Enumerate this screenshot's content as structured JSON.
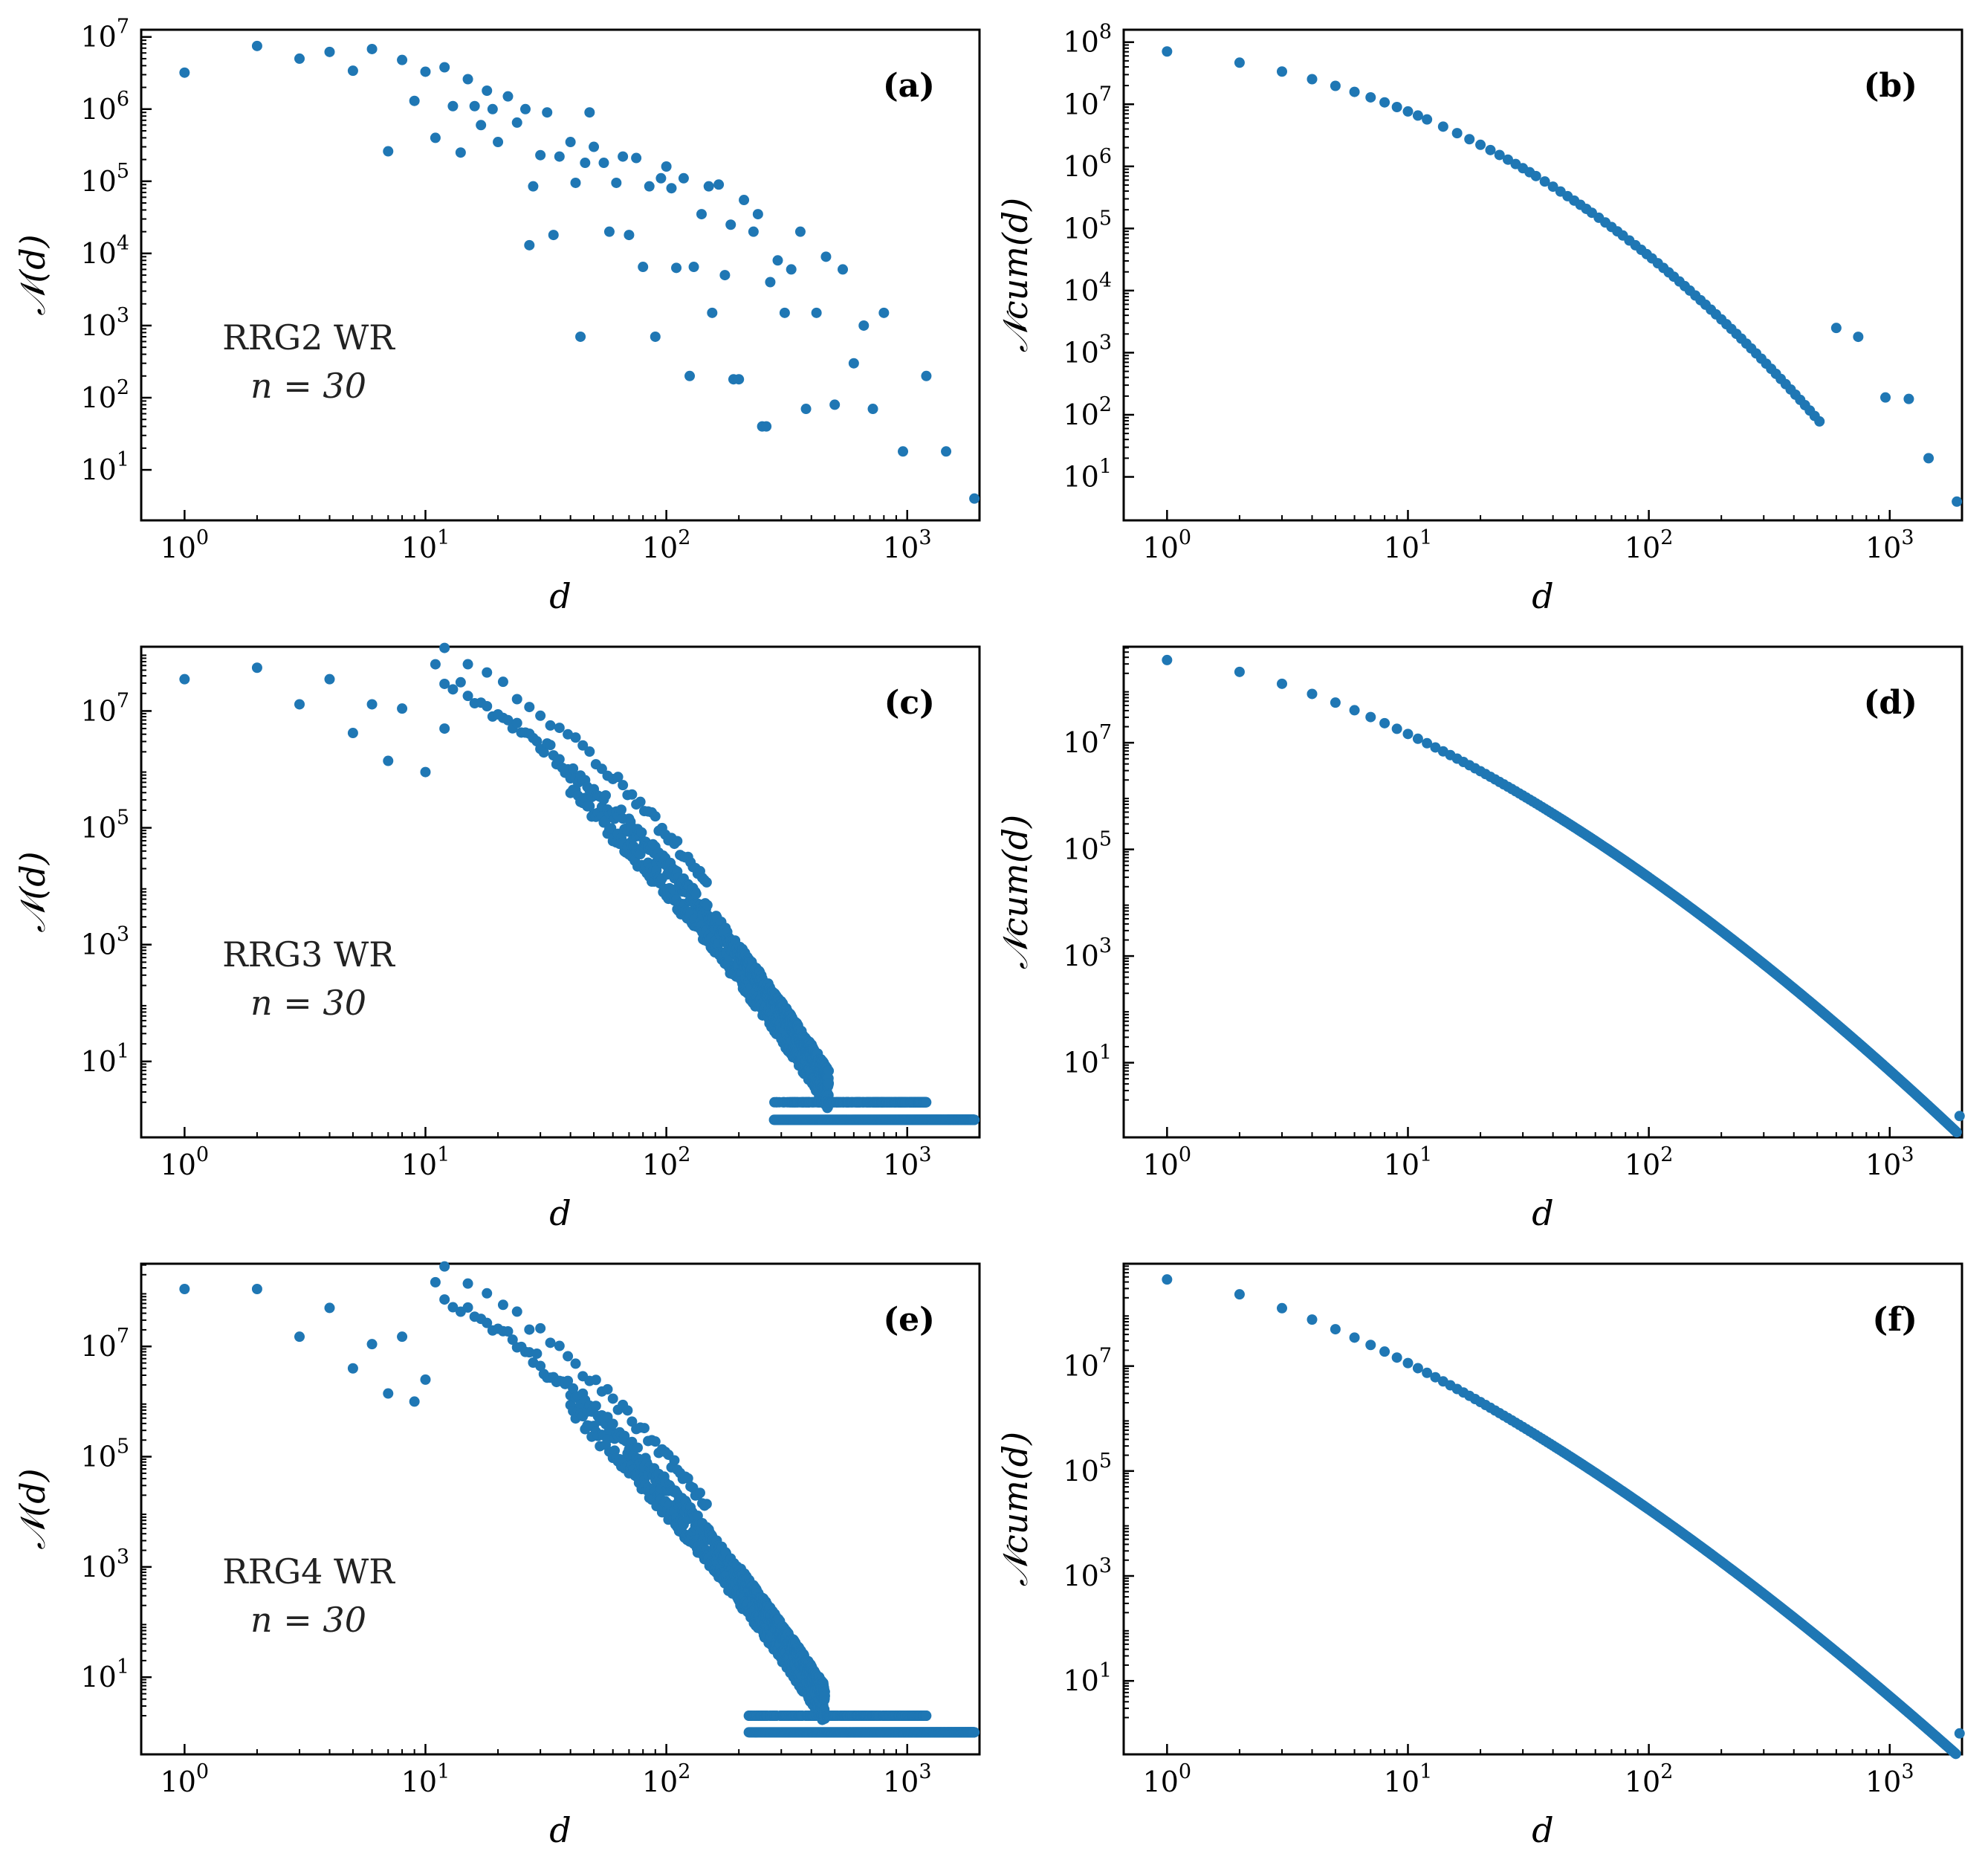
{
  "figure": {
    "point_color": "#1f77b4",
    "x_tick_labels": [
      {
        "base": "10",
        "exp": "0"
      },
      {
        "base": "10",
        "exp": "1"
      },
      {
        "base": "10",
        "exp": "2"
      },
      {
        "base": "10",
        "exp": "3"
      }
    ]
  },
  "chart_data": [
    {
      "id": "a",
      "panel_label": "(a)",
      "type": "scatter",
      "xlabel": "d",
      "ylabel": "𝒩(d)",
      "xscale": "log",
      "yscale": "log",
      "xlim_log10": [
        -0.18,
        3.3
      ],
      "ylim_log10": [
        0.3,
        7.1
      ],
      "y_tick_labels": [
        {
          "base": "10",
          "exp": "1",
          "log": 1
        },
        {
          "base": "10",
          "exp": "2",
          "log": 2
        },
        {
          "base": "10",
          "exp": "3",
          "log": 3
        },
        {
          "base": "10",
          "exp": "4",
          "log": 4
        },
        {
          "base": "10",
          "exp": "5",
          "log": 5
        },
        {
          "base": "10",
          "exp": "6",
          "log": 6
        },
        {
          "base": "10",
          "exp": "7",
          "log": 7
        }
      ],
      "annotation": [
        "RRG2 WR",
        "n = 30"
      ],
      "model": "freq",
      "points": [
        [
          1,
          3200000.0
        ],
        [
          2,
          7500000.0
        ],
        [
          3,
          5000000.0
        ],
        [
          4,
          6200000.0
        ],
        [
          5,
          3400000.0
        ],
        [
          6,
          6800000.0
        ],
        [
          7,
          260000.0
        ],
        [
          8,
          4800000.0
        ],
        [
          9,
          1300000.0
        ],
        [
          10,
          3300000.0
        ],
        [
          11,
          400000.0
        ],
        [
          12,
          3800000.0
        ],
        [
          13,
          1100000.0
        ],
        [
          14,
          250000.0
        ],
        [
          15,
          2600000.0
        ],
        [
          16,
          1100000.0
        ],
        [
          17,
          600000.0
        ],
        [
          18,
          1800000.0
        ],
        [
          19,
          1000000.0
        ],
        [
          20,
          350000.0
        ],
        [
          22,
          1500000.0
        ],
        [
          24,
          650000.0
        ],
        [
          26,
          1000000.0
        ],
        [
          27,
          13000.0
        ],
        [
          28,
          85000.0
        ],
        [
          30,
          230000.0
        ],
        [
          32,
          900000.0
        ],
        [
          34,
          18000.0
        ],
        [
          36,
          220000.0
        ],
        [
          40,
          350000.0
        ],
        [
          42,
          95000.0
        ],
        [
          44,
          700.0
        ],
        [
          46,
          180000.0
        ],
        [
          48,
          900000.0
        ],
        [
          50,
          300000.0
        ],
        [
          55,
          180000.0
        ],
        [
          58,
          20000.0
        ],
        [
          62,
          95000.0
        ],
        [
          66,
          220000.0
        ],
        [
          70,
          18000.0
        ],
        [
          75,
          210000.0
        ],
        [
          80,
          6500.0
        ],
        [
          85,
          85000.0
        ],
        [
          90,
          700.0
        ],
        [
          95,
          110000.0
        ],
        [
          100,
          160000.0
        ],
        [
          105,
          80000.0
        ],
        [
          110,
          6300.0
        ],
        [
          118,
          110000.0
        ],
        [
          125,
          200.0
        ],
        [
          130,
          6500.0
        ],
        [
          140,
          35000.0
        ],
        [
          150,
          85000.0
        ],
        [
          155,
          1500.0
        ],
        [
          165,
          90000.0
        ],
        [
          175,
          5000.0
        ],
        [
          185,
          25000.0
        ],
        [
          190,
          180.0
        ],
        [
          200,
          180.0
        ],
        [
          210,
          55000.0
        ],
        [
          230,
          20000.0
        ],
        [
          240,
          35000.0
        ],
        [
          250,
          40
        ],
        [
          260,
          40
        ],
        [
          270,
          4000.0
        ],
        [
          290,
          8000.0
        ],
        [
          310,
          1500.0
        ],
        [
          330,
          6000.0
        ],
        [
          360,
          20000.0
        ],
        [
          380,
          70
        ],
        [
          420,
          1500.0
        ],
        [
          460,
          9000.0
        ],
        [
          500,
          80
        ],
        [
          540,
          6000.0
        ],
        [
          600,
          300
        ],
        [
          660,
          1000.0
        ],
        [
          720,
          70
        ],
        [
          800,
          1500.0
        ],
        [
          960,
          18
        ],
        [
          1200,
          200
        ],
        [
          1450,
          18
        ],
        [
          1900,
          4
        ]
      ]
    },
    {
      "id": "b",
      "panel_label": "(b)",
      "type": "scatter",
      "xlabel": "d",
      "ylabel": "𝒩cum(d)",
      "xscale": "log",
      "yscale": "log",
      "xlim_log10": [
        -0.18,
        3.3
      ],
      "ylim_log10": [
        0.3,
        8.2
      ],
      "y_tick_labels": [
        {
          "base": "10",
          "exp": "1",
          "log": 1
        },
        {
          "base": "10",
          "exp": "2",
          "log": 2
        },
        {
          "base": "10",
          "exp": "3",
          "log": 3
        },
        {
          "base": "10",
          "exp": "4",
          "log": 4
        },
        {
          "base": "10",
          "exp": "5",
          "log": 5
        },
        {
          "base": "10",
          "exp": "6",
          "log": 6
        },
        {
          "base": "10",
          "exp": "7",
          "log": 7
        },
        {
          "base": "10",
          "exp": "8",
          "log": 8
        }
      ],
      "model": "cum",
      "cum_params": {
        "top": 7.85,
        "range": 7.25,
        "a": 2.1,
        "b": 3.3,
        "p": 2.3,
        "q": 0.5
      },
      "tail_points": [
        [
          600,
          2500.0
        ],
        [
          740,
          1800.0
        ],
        [
          960,
          190.0
        ],
        [
          1200,
          180.0
        ],
        [
          1450,
          20
        ],
        [
          1900,
          4
        ]
      ],
      "stop_d": 520,
      "sparse": true
    },
    {
      "id": "c",
      "panel_label": "(c)",
      "type": "scatter",
      "xlabel": "d",
      "ylabel": "𝒩(d)",
      "xscale": "log",
      "yscale": "log",
      "xlim_log10": [
        -0.18,
        3.3
      ],
      "ylim_log10": [
        -0.3,
        8.1
      ],
      "y_tick_labels": [
        {
          "base": "10",
          "exp": "1",
          "log": 1
        },
        {
          "base": "10",
          "exp": "3",
          "log": 3
        },
        {
          "base": "10",
          "exp": "5",
          "log": 5
        },
        {
          "base": "10",
          "exp": "7",
          "log": 7
        }
      ],
      "annotation": [
        "RRG3 WR",
        "n = 30"
      ],
      "model": "freq_dense",
      "dense_params": {
        "a": 7.6,
        "b": 2.2,
        "c": 1.2,
        "floor_start": 280
      },
      "points": [
        [
          1,
          35000000.0
        ],
        [
          2,
          55000000.0
        ],
        [
          3,
          13000000.0
        ],
        [
          4,
          35000000.0
        ],
        [
          5,
          4200000.0
        ],
        [
          6,
          13000000.0
        ],
        [
          7,
          1400000.0
        ],
        [
          8,
          11000000.0
        ],
        [
          10,
          900000.0
        ],
        [
          12,
          5000000.0
        ]
      ]
    },
    {
      "id": "d",
      "panel_label": "(d)",
      "type": "scatter",
      "xlabel": "d",
      "ylabel": "𝒩cum(d)",
      "xscale": "log",
      "yscale": "log",
      "xlim_log10": [
        -0.18,
        3.3
      ],
      "ylim_log10": [
        -0.4,
        8.8
      ],
      "y_tick_labels": [
        {
          "base": "10",
          "exp": "1",
          "log": 1
        },
        {
          "base": "10",
          "exp": "3",
          "log": 3
        },
        {
          "base": "10",
          "exp": "5",
          "log": 5
        },
        {
          "base": "10",
          "exp": "7",
          "log": 7
        }
      ],
      "model": "cum",
      "cum_params": {
        "top": 8.55,
        "range": 8.55,
        "a": 1.85,
        "b": 3.3,
        "p": 1.6,
        "q": 0.12
      },
      "stop_d": 1900,
      "sparse": false
    },
    {
      "id": "e",
      "panel_label": "(e)",
      "type": "scatter",
      "xlabel": "d",
      "ylabel": "𝒩(d)",
      "xscale": "log",
      "yscale": "log",
      "xlim_log10": [
        -0.18,
        3.3
      ],
      "ylim_log10": [
        -0.4,
        8.5
      ],
      "y_tick_labels": [
        {
          "base": "10",
          "exp": "1",
          "log": 1
        },
        {
          "base": "10",
          "exp": "3",
          "log": 3
        },
        {
          "base": "10",
          "exp": "5",
          "log": 5
        },
        {
          "base": "10",
          "exp": "7",
          "log": 7
        }
      ],
      "annotation": [
        "RRG4 WR",
        "n = 30"
      ],
      "model": "freq_dense",
      "dense_params": {
        "a": 8.0,
        "b": 2.5,
        "c": 1.2,
        "floor_start": 220
      },
      "points": [
        [
          1,
          110000000.0
        ],
        [
          2,
          110000000.0
        ],
        [
          3,
          15000000.0
        ],
        [
          4,
          50000000.0
        ],
        [
          5,
          4000000.0
        ],
        [
          6,
          11000000.0
        ],
        [
          7,
          1400000.0
        ],
        [
          8,
          15000000.0
        ],
        [
          9,
          1000000.0
        ],
        [
          10,
          2500000.0
        ]
      ]
    },
    {
      "id": "f",
      "panel_label": "(f)",
      "type": "scatter",
      "xlabel": "d",
      "ylabel": "𝒩cum(d)",
      "xscale": "log",
      "yscale": "log",
      "xlim_log10": [
        -0.18,
        3.3
      ],
      "ylim_log10": [
        -0.4,
        8.95
      ],
      "y_tick_labels": [
        {
          "base": "10",
          "exp": "1",
          "log": 1
        },
        {
          "base": "10",
          "exp": "3",
          "log": 3
        },
        {
          "base": "10",
          "exp": "5",
          "log": 5
        },
        {
          "base": "10",
          "exp": "7",
          "log": 7
        }
      ],
      "model": "cum",
      "cum_params": {
        "top": 8.65,
        "range": 8.65,
        "a": 2.2,
        "b": 3.3,
        "p": 1.5,
        "q": 0.15
      },
      "stop_d": 1900,
      "sparse": false
    }
  ]
}
